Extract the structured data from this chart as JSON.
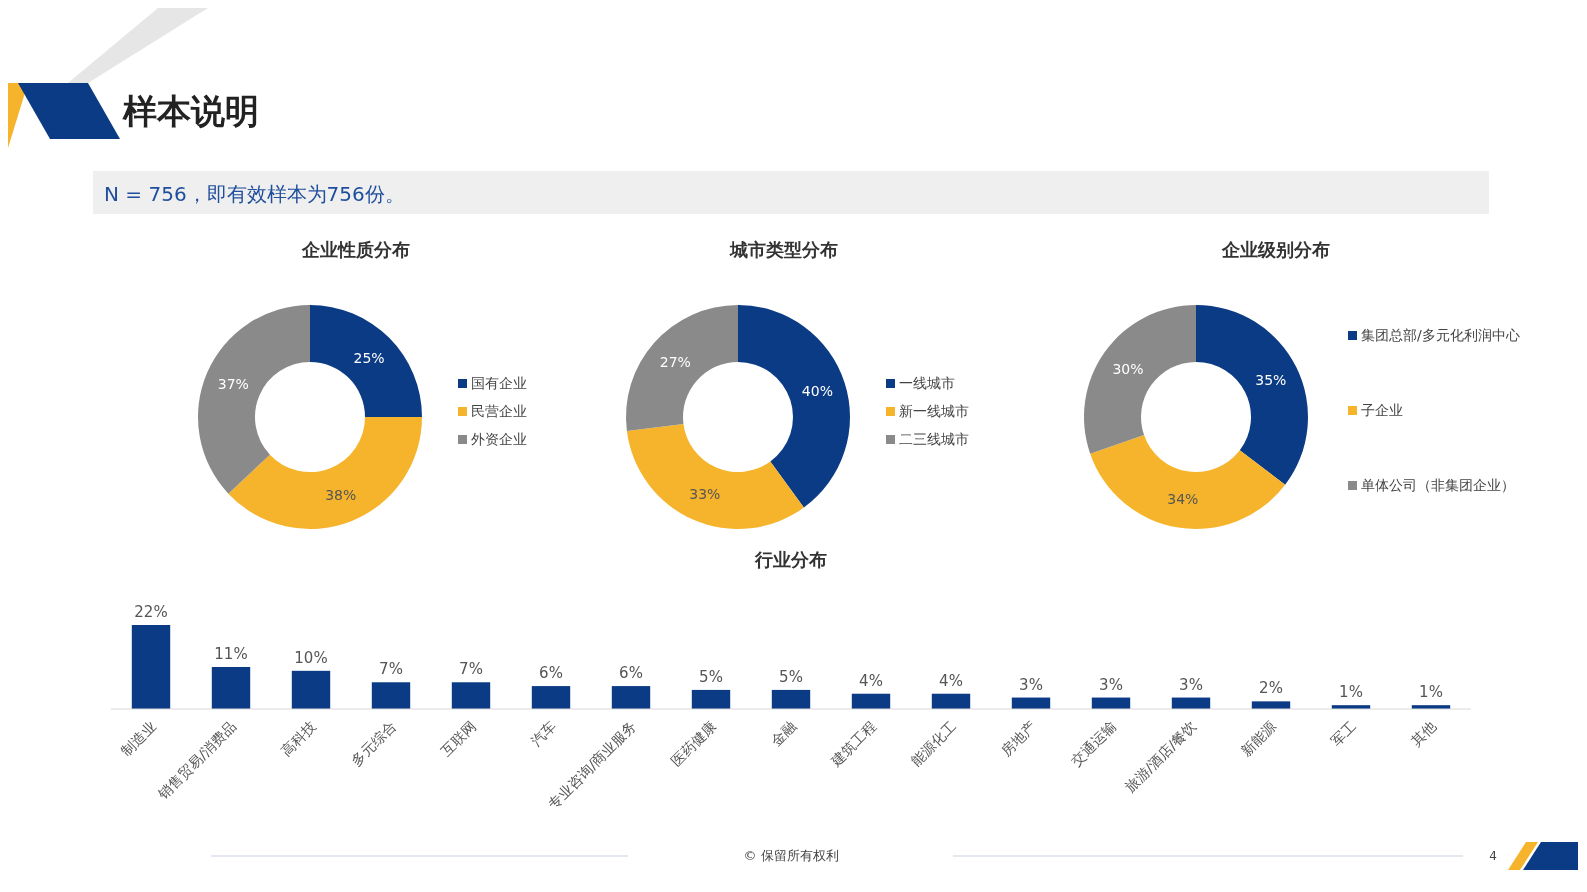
{
  "chart_data": [
    {
      "type": "donut",
      "title": "企业性质分布",
      "categories": [
        "国有企业",
        "民营企业",
        "外资企业"
      ],
      "values": [
        25,
        38,
        37
      ],
      "value_labels": [
        "25%",
        "38%",
        "37%"
      ],
      "colors": [
        "#0b3b84",
        "#f6b42c",
        "#8a8a8a"
      ],
      "legend": "right",
      "annotations": [
        "样本说明",
        "N = 756，即有效样本为756份。"
      ]
    },
    {
      "type": "donut",
      "title": "城市类型分布",
      "categories": [
        "一线城市",
        "新一线城市",
        "二三线城市"
      ],
      "values": [
        40,
        33,
        27
      ],
      "value_labels": [
        "40%",
        "33%",
        "27%"
      ],
      "colors": [
        "#0b3b84",
        "#f6b42c",
        "#8a8a8a"
      ],
      "legend": "right"
    },
    {
      "type": "donut",
      "title": "企业级别分布",
      "categories": [
        "集团总部/多元化利润中心",
        "子企业",
        "单体公司（非集团企业）"
      ],
      "values": [
        35,
        34,
        30
      ],
      "value_labels": [
        "35%",
        "34%",
        "30%"
      ],
      "colors": [
        "#0b3b84",
        "#f6b42c",
        "#8a8a8a"
      ],
      "legend": "right"
    },
    {
      "type": "bar",
      "title": "行业分布",
      "categories": [
        "制造业",
        "销售贸易/消费品",
        "高科技",
        "多元综合",
        "互联网",
        "汽车",
        "专业咨询/商业服务",
        "医药健康",
        "金融",
        "建筑工程",
        "能源化工",
        "房地产",
        "交通运输",
        "旅游/酒店/餐饮",
        "新能源",
        "军工",
        "其他"
      ],
      "values": [
        22,
        11,
        10,
        7,
        7,
        6,
        6,
        5,
        5,
        4,
        4,
        3,
        3,
        3,
        2,
        1,
        1
      ],
      "value_labels": [
        "22%",
        "11%",
        "10%",
        "7%",
        "7%",
        "6%",
        "6%",
        "5%",
        "5%",
        "4%",
        "4%",
        "3%",
        "3%",
        "3%",
        "2%",
        "1%",
        "1%"
      ],
      "color": "#0b3b84",
      "annotations": [
        "© 保留所有权利",
        "4"
      ]
    }
  ]
}
